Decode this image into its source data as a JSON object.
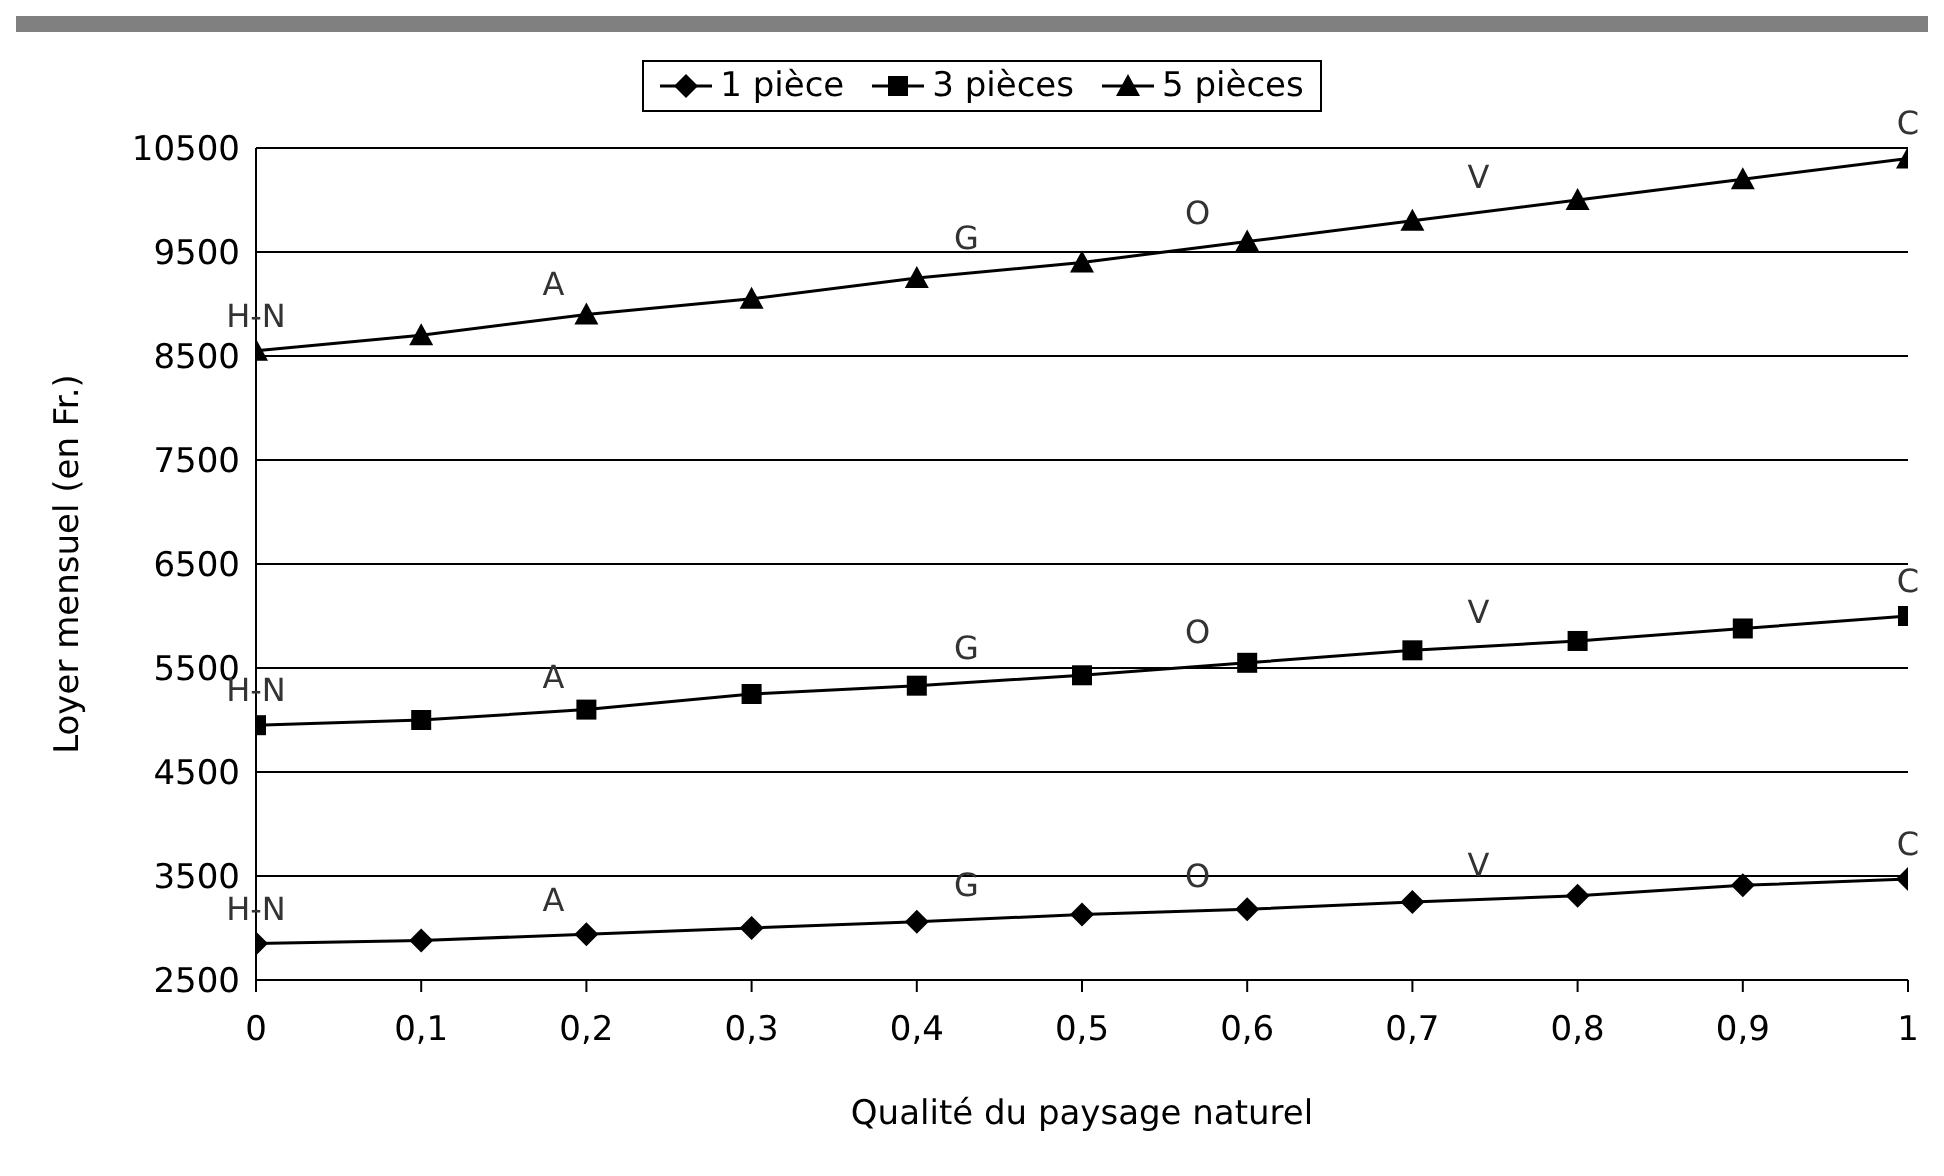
{
  "chart_data": {
    "type": "line",
    "xlabel": "Qualité du paysage naturel",
    "ylabel": "Loyer mensuel (en Fr.)",
    "x": [
      0,
      0.1,
      0.2,
      0.3,
      0.4,
      0.5,
      0.6,
      0.7,
      0.8,
      0.9,
      1
    ],
    "series": [
      {
        "name": "1 pièce",
        "color": "#000000",
        "marker": "diamond",
        "values": [
          2850,
          2880,
          2940,
          3000,
          3060,
          3130,
          3180,
          3250,
          3310,
          3410,
          3470
        ]
      },
      {
        "name": "3 pièces",
        "color": "#000000",
        "marker": "square",
        "values": [
          4950,
          5000,
          5100,
          5250,
          5330,
          5430,
          5550,
          5670,
          5760,
          5880,
          6000
        ]
      },
      {
        "name": "5 pièces",
        "color": "#000000",
        "marker": "triangle",
        "values": [
          8550,
          8700,
          8900,
          9050,
          9250,
          9400,
          9600,
          9800,
          10000,
          10200,
          10400
        ]
      }
    ],
    "xlim": [
      0,
      1
    ],
    "xticks": [
      0,
      {
        "value": 0.1,
        "label": "0,1"
      },
      {
        "value": 0.2,
        "label": "0,2"
      },
      {
        "value": 0.3,
        "label": "0,3"
      },
      {
        "value": 0.4,
        "label": "0,4"
      },
      {
        "value": 0.5,
        "label": "0,5"
      },
      {
        "value": 0.6,
        "label": "0,6"
      },
      {
        "value": 0.7,
        "label": "0,7"
      },
      {
        "value": 0.8,
        "label": "0,8"
      },
      {
        "value": 0.9,
        "label": "0,9"
      },
      1
    ],
    "ylim": [
      2500,
      10500
    ],
    "yticks": [
      2500,
      3500,
      4500,
      5500,
      6500,
      7500,
      8500,
      9500,
      10500
    ],
    "grid": "y",
    "legend": "top",
    "line_style": "solid",
    "annotations": [
      {
        "text": "H-N",
        "x": 0,
        "y": 8550
      },
      {
        "text": "A",
        "x": 0.18,
        "y": 8860
      },
      {
        "text": "G",
        "x": 0.43,
        "y": 9295
      },
      {
        "text": "O",
        "x": 0.57,
        "y": 9540
      },
      {
        "text": "V",
        "x": 0.74,
        "y": 9880
      },
      {
        "text": "C",
        "x": 1,
        "y": 10400
      },
      {
        "text": "H-N",
        "x": 0,
        "y": 4950
      },
      {
        "text": "A",
        "x": 0.18,
        "y": 5080
      },
      {
        "text": "G",
        "x": 0.43,
        "y": 5360
      },
      {
        "text": "O",
        "x": 0.57,
        "y": 5514
      },
      {
        "text": "V",
        "x": 0.74,
        "y": 5706
      },
      {
        "text": "C",
        "x": 1,
        "y": 6000
      },
      {
        "text": "H-N",
        "x": 0,
        "y": 2850
      },
      {
        "text": "A",
        "x": 0.18,
        "y": 2928
      },
      {
        "text": "G",
        "x": 0.43,
        "y": 3081
      },
      {
        "text": "O",
        "x": 0.57,
        "y": 3165
      },
      {
        "text": "V",
        "x": 0.74,
        "y": 3274
      },
      {
        "text": "C",
        "x": 1,
        "y": 3470
      }
    ]
  }
}
